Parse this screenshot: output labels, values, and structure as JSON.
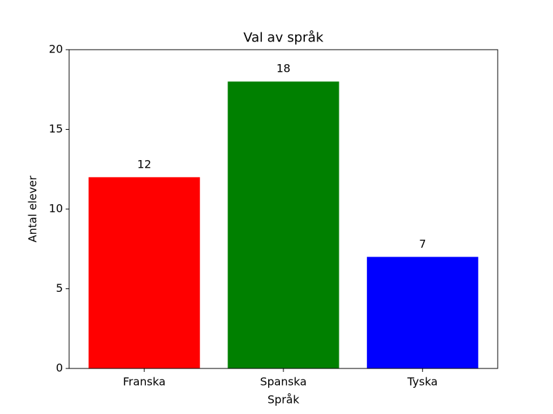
{
  "chart_data": {
    "type": "bar",
    "title": "Val av språk",
    "xlabel": "Språk",
    "ylabel": "Antal elever",
    "categories": [
      "Franska",
      "Spanska",
      "Tyska"
    ],
    "values": [
      12,
      18,
      7
    ],
    "colors": [
      "#ff0000",
      "#008000",
      "#0000ff"
    ],
    "ylim": [
      0,
      20
    ],
    "yticks": [
      0,
      5,
      10,
      15,
      20
    ]
  }
}
